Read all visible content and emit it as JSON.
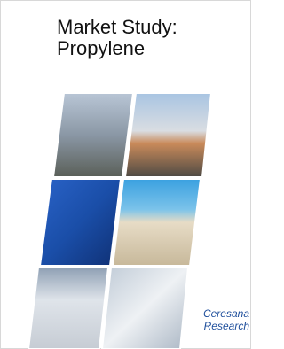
{
  "cover": {
    "title_lines": [
      "Market Study:",
      "Propylene"
    ],
    "publisher_lines": [
      "Ceresana",
      "Research"
    ]
  }
}
